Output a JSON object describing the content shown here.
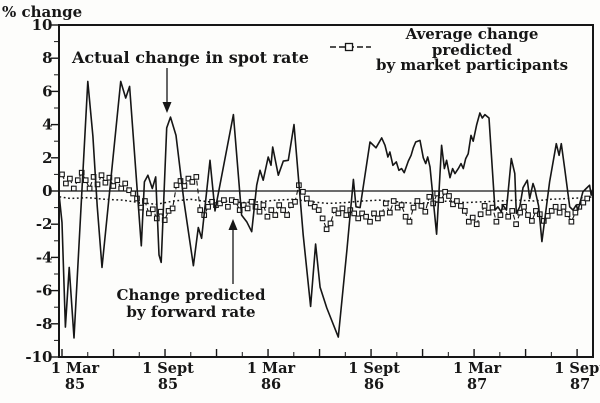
{
  "figure": {
    "y_axis_title": "% change",
    "annotations": {
      "spot_label": "Actual change in spot rate",
      "forward_label_line1": "Change predicted",
      "forward_label_line2": "by forward rate"
    },
    "legend": {
      "line1": "Average change predicted",
      "line2": "by market participants",
      "marker": "dashed-line-with-open-square"
    }
  },
  "chart_data": {
    "type": "line",
    "title": "",
    "xlabel": "",
    "ylabel": "% change",
    "ylim": [
      -10,
      10
    ],
    "grid": false,
    "legend_position": "top-right-inside",
    "y_ticks": [
      10,
      8,
      6,
      4,
      2,
      0,
      -2,
      -4,
      -6,
      -8,
      -10
    ],
    "x_unit": "months since 1 Mar 1985",
    "x_range_months": [
      -0.2,
      31
    ],
    "x_tick_major_step_months": 3,
    "x_labels": [
      {
        "month": 0,
        "line1": "1 Mar",
        "line2": "85"
      },
      {
        "month": 6,
        "line1": "1 Sept",
        "line2": "85"
      },
      {
        "month": 12,
        "line1": "1 Mar",
        "line2": "86"
      },
      {
        "month": 18,
        "line1": "1 Sept",
        "line2": "86"
      },
      {
        "month": 24,
        "line1": "1 Mar",
        "line2": "87"
      },
      {
        "month": 30,
        "line1": "1 Sept",
        "line2": "87"
      }
    ],
    "colors": {
      "ink": "#161616",
      "background": "#fdfdfb"
    },
    "series": [
      {
        "name": "Actual change in spot rate",
        "style": "solid",
        "points": [
          [
            -0.15,
            -0.4
          ],
          [
            0.0,
            -1.9
          ],
          [
            0.2,
            -8.2
          ],
          [
            0.42,
            -4.6
          ],
          [
            0.7,
            -8.85
          ],
          [
            1.5,
            6.6
          ],
          [
            1.8,
            3.3
          ],
          [
            2.05,
            -0.9
          ],
          [
            2.33,
            -4.6
          ],
          [
            3.42,
            6.6
          ],
          [
            3.71,
            5.6
          ],
          [
            3.94,
            6.3
          ],
          [
            4.62,
            -3.3
          ],
          [
            4.8,
            0.55
          ],
          [
            5.0,
            0.95
          ],
          [
            5.26,
            0.15
          ],
          [
            5.46,
            0.85
          ],
          [
            5.65,
            -3.85
          ],
          [
            5.78,
            -4.3
          ],
          [
            6.1,
            3.8
          ],
          [
            6.32,
            4.45
          ],
          [
            6.64,
            3.35
          ],
          [
            7.1,
            -0.6
          ],
          [
            7.65,
            -4.5
          ],
          [
            7.94,
            -2.2
          ],
          [
            8.13,
            -2.85
          ],
          [
            8.62,
            1.85
          ],
          [
            8.91,
            -1.2
          ],
          [
            9.98,
            4.6
          ],
          [
            10.46,
            -1.45
          ],
          [
            10.76,
            -1.85
          ],
          [
            11.05,
            -2.45
          ],
          [
            11.34,
            0.35
          ],
          [
            11.53,
            1.25
          ],
          [
            11.72,
            0.65
          ],
          [
            12.01,
            2.05
          ],
          [
            12.17,
            1.55
          ],
          [
            12.27,
            2.65
          ],
          [
            12.6,
            0.95
          ],
          [
            12.89,
            1.8
          ],
          [
            13.18,
            1.85
          ],
          [
            13.51,
            4.0
          ],
          [
            14.05,
            -2.65
          ],
          [
            14.48,
            -6.95
          ],
          [
            14.77,
            -3.2
          ],
          [
            15.03,
            -5.8
          ],
          [
            15.42,
            -7.05
          ],
          [
            16.09,
            -8.8
          ],
          [
            16.6,
            -3.5
          ],
          [
            16.97,
            0.7
          ],
          [
            17.12,
            -0.95
          ],
          [
            17.36,
            -1.0
          ],
          [
            17.94,
            2.95
          ],
          [
            18.29,
            2.6
          ],
          [
            18.62,
            3.2
          ],
          [
            18.81,
            2.75
          ],
          [
            18.98,
            2.05
          ],
          [
            19.1,
            2.35
          ],
          [
            19.27,
            1.55
          ],
          [
            19.47,
            1.75
          ],
          [
            19.62,
            1.25
          ],
          [
            19.78,
            1.35
          ],
          [
            19.93,
            1.1
          ],
          [
            20.17,
            1.8
          ],
          [
            20.33,
            2.15
          ],
          [
            20.46,
            2.6
          ],
          [
            20.6,
            2.95
          ],
          [
            20.85,
            3.05
          ],
          [
            21.04,
            2.0
          ],
          [
            21.18,
            1.65
          ],
          [
            21.3,
            2.05
          ],
          [
            21.43,
            1.45
          ],
          [
            21.82,
            -2.6
          ],
          [
            22.11,
            2.75
          ],
          [
            22.27,
            1.35
          ],
          [
            22.4,
            1.85
          ],
          [
            22.6,
            0.8
          ],
          [
            22.75,
            1.35
          ],
          [
            22.89,
            1.05
          ],
          [
            23.08,
            1.35
          ],
          [
            23.24,
            1.65
          ],
          [
            23.37,
            1.35
          ],
          [
            23.51,
            1.95
          ],
          [
            23.66,
            2.25
          ],
          [
            23.82,
            3.35
          ],
          [
            23.95,
            3.0
          ],
          [
            24.15,
            4.0
          ],
          [
            24.34,
            4.7
          ],
          [
            24.48,
            4.4
          ],
          [
            24.63,
            4.6
          ],
          [
            24.87,
            4.4
          ],
          [
            25.22,
            -1.15
          ],
          [
            25.39,
            -0.95
          ],
          [
            25.58,
            -1.25
          ],
          [
            25.68,
            -0.85
          ],
          [
            25.88,
            -1.15
          ],
          [
            26.17,
            1.95
          ],
          [
            26.37,
            1.05
          ],
          [
            26.46,
            -1.35
          ],
          [
            26.66,
            -0.95
          ],
          [
            26.85,
            0.2
          ],
          [
            27.1,
            0.65
          ],
          [
            27.24,
            -0.45
          ],
          [
            27.43,
            0.45
          ],
          [
            27.53,
            0.15
          ],
          [
            27.76,
            -0.9
          ],
          [
            27.95,
            -3.05
          ],
          [
            28.21,
            -0.95
          ],
          [
            28.4,
            0.55
          ],
          [
            28.79,
            2.85
          ],
          [
            28.95,
            2.15
          ],
          [
            29.08,
            2.85
          ],
          [
            29.28,
            1.35
          ],
          [
            29.57,
            -0.95
          ],
          [
            29.76,
            -1.15
          ],
          [
            29.95,
            -0.85
          ],
          [
            30.05,
            -1.15
          ],
          [
            30.34,
            -0.05
          ],
          [
            30.53,
            0.15
          ],
          [
            30.73,
            0.35
          ],
          [
            30.82,
            -0.25
          ],
          [
            30.92,
            0.15
          ]
        ]
      },
      {
        "name": "Average change predicted by market participants",
        "style": "dashed-with-square-markers",
        "start_month": 0,
        "step_month": 0.23,
        "values": [
          1.0,
          0.45,
          0.75,
          0.15,
          0.65,
          1.1,
          0.65,
          0.15,
          0.85,
          0.4,
          0.95,
          0.5,
          0.8,
          0.3,
          0.65,
          0.15,
          0.45,
          0.05,
          -0.15,
          -0.45,
          -1.0,
          -0.6,
          -1.35,
          -1.1,
          -1.65,
          -1.25,
          -1.75,
          -1.2,
          -1.05,
          0.35,
          0.6,
          0.3,
          0.75,
          0.55,
          0.85,
          -1.15,
          -1.45,
          -0.95,
          -0.65,
          -0.85,
          -0.75,
          -0.55,
          -0.95,
          -0.55,
          -0.65,
          -1.15,
          -0.85,
          -1.05,
          -0.65,
          -0.95,
          -1.25,
          -0.85,
          -1.55,
          -1.15,
          -1.45,
          -0.85,
          -1.15,
          -1.45,
          -0.85,
          -0.65,
          0.35,
          -0.05,
          -0.45,
          -0.75,
          -0.95,
          -1.15,
          -1.65,
          -2.3,
          -1.95,
          -1.15,
          -1.35,
          -1.05,
          -1.45,
          -1.15,
          -1.35,
          -1.65,
          -1.35,
          -1.55,
          -1.85,
          -1.35,
          -1.65,
          -1.35,
          -0.75,
          -1.3,
          -0.6,
          -1.0,
          -0.85,
          -1.55,
          -1.85,
          -1.0,
          -0.6,
          -0.9,
          -1.25,
          -0.35,
          -0.75,
          -0.15,
          -0.55,
          -0.05,
          -0.3,
          -0.8,
          -0.6,
          -0.9,
          -1.2,
          -1.85,
          -1.6,
          -2.0,
          -1.4,
          -0.9,
          -1.3,
          -1.0,
          -1.85,
          -1.45,
          -0.95,
          -1.55,
          -1.2,
          -2.0,
          -1.3,
          -0.95,
          -1.45,
          -1.8,
          -1.2,
          -1.4,
          -1.8,
          -1.5,
          -1.2,
          -0.95,
          -1.3,
          -0.95,
          -1.4,
          -1.85,
          -1.3,
          -0.95,
          -0.7,
          -0.45
        ]
      },
      {
        "name": "Change predicted by forward rate",
        "style": "dotted",
        "points": [
          [
            -0.15,
            -0.35
          ],
          [
            0.5,
            -0.45
          ],
          [
            1.5,
            -0.4
          ],
          [
            2.5,
            -0.5
          ],
          [
            3.5,
            -0.55
          ],
          [
            4.5,
            -0.7
          ],
          [
            5.5,
            -0.8
          ],
          [
            6.5,
            -0.6
          ],
          [
            7.5,
            -0.5
          ],
          [
            8.5,
            -0.65
          ],
          [
            9.5,
            -0.6
          ],
          [
            10.5,
            -0.7
          ],
          [
            11.5,
            -0.65
          ],
          [
            12.5,
            -0.55
          ],
          [
            13.5,
            -0.5
          ],
          [
            14.5,
            -0.65
          ],
          [
            15.5,
            -0.75
          ],
          [
            16.5,
            -0.7
          ],
          [
            17.5,
            -0.6
          ],
          [
            18.5,
            -0.55
          ],
          [
            19.5,
            -0.65
          ],
          [
            20.5,
            -0.75
          ],
          [
            21.5,
            -0.7
          ],
          [
            22.5,
            -0.6
          ],
          [
            23.5,
            -0.7
          ],
          [
            24.5,
            -0.65
          ],
          [
            25.5,
            -0.6
          ],
          [
            26.5,
            -0.55
          ],
          [
            27.5,
            -0.6
          ],
          [
            28.5,
            -0.5
          ],
          [
            29.5,
            -0.45
          ],
          [
            30.5,
            -0.4
          ],
          [
            30.92,
            -0.35
          ]
        ]
      }
    ]
  }
}
